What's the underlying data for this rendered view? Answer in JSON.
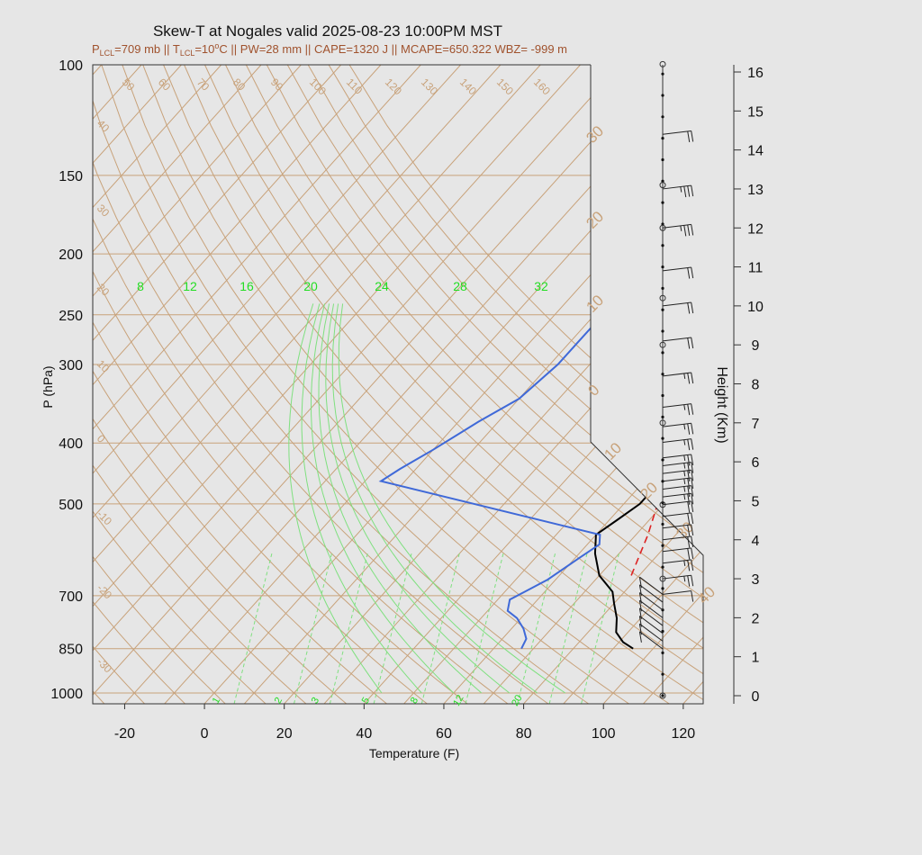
{
  "chart_data": {
    "type": "line",
    "title": "Skew-T at Nogales valid 2025-08-23 10:00PM MST",
    "subtitle": {
      "lcl_pressure": "P",
      "lcl_sub": "LCL",
      "lcl_pressure_value": "=709 mb || T",
      "lcl_temp_sub": "LCL",
      "lcl_temp_value": "=10",
      "deg_sup": "o",
      "rest": "C || PW=28 mm || CAPE=1320 J || MCAPE=650.322 WBZ= -999 m"
    },
    "xlabel": "Temperature (F)",
    "ylabel": "P (hPa)",
    "y2label": "Height (Km)",
    "xlim": [
      -28,
      125
    ],
    "xticks": [
      "-20",
      "0",
      "20",
      "40",
      "60",
      "80",
      "100",
      "120"
    ],
    "pressure_ticks": [
      "100",
      "150",
      "200",
      "250",
      "300",
      "400",
      "500",
      "700",
      "850",
      "1000"
    ],
    "height_ticks": [
      "0",
      "1",
      "2",
      "3",
      "4",
      "5",
      "6",
      "7",
      "8",
      "9",
      "10",
      "11",
      "12",
      "13",
      "14",
      "15",
      "16"
    ],
    "isotherm_labels_top": [
      "50",
      "60",
      "70",
      "80",
      "90",
      "100",
      "110",
      "120",
      "130",
      "140",
      "150",
      "160"
    ],
    "isotherm_labels_left": [
      "40",
      "30",
      "20",
      "10",
      "0",
      "-10",
      "-20",
      "-30"
    ],
    "isotherm_labels_right": [
      "30",
      "20",
      "10",
      "0",
      "10",
      "20",
      "30",
      "40"
    ],
    "mixing_ratio_labels_bottom": [
      "1",
      "2",
      "3",
      "5",
      "8",
      "12",
      "20"
    ],
    "adiabat_labels": [
      "8",
      "12",
      "16",
      "20",
      "24",
      "28",
      "32"
    ],
    "series": [
      {
        "name": "temperature",
        "color": "#000000",
        "points": [
          [
            95,
            850
          ],
          [
            91,
            830
          ],
          [
            87,
            800
          ],
          [
            84,
            760
          ],
          [
            80,
            720
          ],
          [
            77,
            690
          ],
          [
            70,
            650
          ],
          [
            64,
            600
          ],
          [
            60,
            560
          ],
          [
            62,
            530
          ],
          [
            64,
            500
          ],
          [
            64,
            470
          ],
          [
            62,
            440
          ],
          [
            58,
            400
          ],
          [
            51,
            350
          ],
          [
            40,
            300
          ],
          [
            28,
            250
          ],
          [
            18,
            200
          ],
          [
            13,
            170
          ],
          [
            13,
            150
          ],
          [
            19,
            130
          ],
          [
            31,
            100
          ]
        ]
      },
      {
        "name": "dewpoint",
        "color": "#3f69d8",
        "points": [
          [
            67,
            850
          ],
          [
            66,
            820
          ],
          [
            63,
            790
          ],
          [
            59,
            760
          ],
          [
            55,
            740
          ],
          [
            53,
            710
          ],
          [
            55,
            690
          ],
          [
            58,
            660
          ],
          [
            61,
            610
          ],
          [
            63,
            580
          ],
          [
            61,
            560
          ],
          [
            -6,
            460
          ],
          [
            -4,
            440
          ],
          [
            0,
            410
          ],
          [
            5,
            370
          ],
          [
            10,
            340
          ],
          [
            12,
            300
          ],
          [
            12,
            260
          ],
          [
            10,
            230
          ],
          [
            5,
            200
          ],
          [
            -8,
            170
          ],
          [
            -12,
            140
          ],
          [
            -14,
            100
          ]
        ]
      },
      {
        "name": "parcel",
        "color": "#dd2222",
        "points": [
          [
            78,
            650
          ],
          [
            73,
            560
          ],
          [
            66,
            470
          ],
          [
            58,
            400
          ],
          [
            51,
            350
          ],
          [
            40,
            290
          ],
          [
            30,
            245
          ],
          [
            20,
            205
          ],
          [
            13,
            170
          ]
        ]
      }
    ],
    "wind_barbs_upper": [
      {
        "height_km": 14.4,
        "speed_kt": 20
      },
      {
        "height_km": 13.0,
        "speed_kt": 25
      },
      {
        "height_km": 12.0,
        "speed_kt": 25
      },
      {
        "height_km": 10.9,
        "speed_kt": 20
      },
      {
        "height_km": 10.0,
        "speed_kt": 20
      },
      {
        "height_km": 9.1,
        "speed_kt": 20
      },
      {
        "height_km": 8.2,
        "speed_kt": 15
      },
      {
        "height_km": 7.4,
        "speed_kt": 15
      },
      {
        "height_km": 6.9,
        "speed_kt": 15
      },
      {
        "height_km": 6.5,
        "speed_kt": 15
      },
      {
        "height_km": 6.1,
        "speed_kt": 15
      },
      {
        "height_km": 5.9,
        "speed_kt": 15
      },
      {
        "height_km": 5.7,
        "speed_kt": 15
      },
      {
        "height_km": 5.5,
        "speed_kt": 15
      },
      {
        "height_km": 5.3,
        "speed_kt": 15
      },
      {
        "height_km": 5.1,
        "speed_kt": 15
      },
      {
        "height_km": 4.9,
        "speed_kt": 20
      },
      {
        "height_km": 4.6,
        "speed_kt": 20
      },
      {
        "height_km": 4.3,
        "speed_kt": 20
      },
      {
        "height_km": 4.0,
        "speed_kt": 20
      },
      {
        "height_km": 3.7,
        "speed_kt": 20
      },
      {
        "height_km": 3.4,
        "speed_kt": 15
      },
      {
        "height_km": 3.0,
        "speed_kt": 15
      },
      {
        "height_km": 2.6,
        "speed_kt": 10
      }
    ],
    "wind_barbs_lower": [
      {
        "height_km": 2.6,
        "speed_kt": 10
      },
      {
        "height_km": 2.4,
        "speed_kt": 10
      },
      {
        "height_km": 2.2,
        "speed_kt": 10
      },
      {
        "height_km": 2.0,
        "speed_kt": 10
      },
      {
        "height_km": 1.8,
        "speed_kt": 10
      },
      {
        "height_km": 1.6,
        "speed_kt": 10
      },
      {
        "height_km": 1.4,
        "speed_kt": 10
      },
      {
        "height_km": 1.2,
        "speed_kt": 10
      }
    ],
    "grid": true,
    "colors": {
      "background": "#e6e6e6",
      "grid_tan": "#c8a27a",
      "green": "#22dd22"
    }
  }
}
